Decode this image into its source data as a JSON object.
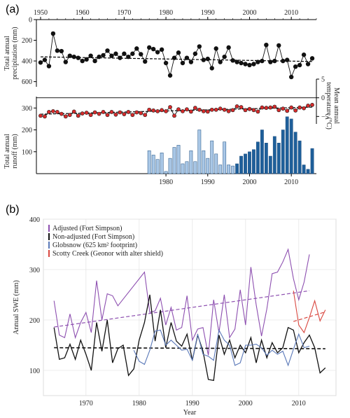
{
  "panel_a_label": "(a)",
  "panel_b_label": "(b)",
  "chart_data": [
    {
      "id": "a-precip",
      "type": "line",
      "ylabel_lines": [
        "Total annual",
        "precipitation (mm)"
      ],
      "x_ticks": [
        "1950",
        "1960",
        "1970",
        "1980",
        "1990",
        "2000",
        "2010"
      ],
      "y_ticks": [
        "0",
        "200",
        "400",
        "600"
      ],
      "xlim": [
        1949,
        2016
      ],
      "ylim": [
        0,
        650
      ],
      "inverted": true,
      "years": [
        1950,
        1951,
        1952,
        1953,
        1954,
        1955,
        1956,
        1957,
        1958,
        1959,
        1960,
        1961,
        1962,
        1963,
        1964,
        1965,
        1966,
        1967,
        1968,
        1969,
        1970,
        1971,
        1972,
        1973,
        1974,
        1975,
        1976,
        1977,
        1978,
        1979,
        1980,
        1981,
        1982,
        1983,
        1984,
        1985,
        1986,
        1987,
        1988,
        1989,
        1990,
        1991,
        1992,
        1993,
        1994,
        1995,
        1996,
        1997,
        1998,
        1999,
        2000,
        2001,
        2002,
        2003,
        2004,
        2005,
        2006,
        2007,
        2008,
        2009,
        2010,
        2011,
        2012,
        2013,
        2014,
        2015
      ],
      "values": [
        415,
        390,
        450,
        135,
        300,
        305,
        410,
        350,
        360,
        370,
        400,
        385,
        350,
        400,
        360,
        345,
        300,
        350,
        330,
        370,
        330,
        360,
        330,
        280,
        335,
        405,
        270,
        285,
        315,
        290,
        420,
        540,
        370,
        320,
        420,
        370,
        410,
        330,
        260,
        390,
        380,
        470,
        280,
        410,
        360,
        270,
        395,
        410,
        420,
        430,
        440,
        430,
        410,
        400,
        245,
        410,
        400,
        250,
        400,
        390,
        555,
        455,
        440,
        340,
        430,
        375
      ],
      "trend": [
        360,
        405
      ]
    },
    {
      "id": "a-temp",
      "type": "line",
      "ylabel_lines": [
        "Mean annual",
        "temperature (°C)"
      ],
      "y_ticks": [
        "5",
        "0",
        "-5"
      ],
      "ylim": [
        -7,
        5
      ],
      "years": [
        1950,
        1951,
        1952,
        1953,
        1954,
        1955,
        1956,
        1957,
        1958,
        1959,
        1960,
        1961,
        1962,
        1963,
        1964,
        1965,
        1966,
        1967,
        1968,
        1969,
        1970,
        1971,
        1972,
        1973,
        1974,
        1975,
        1976,
        1977,
        1978,
        1979,
        1980,
        1981,
        1982,
        1983,
        1984,
        1985,
        1986,
        1987,
        1988,
        1989,
        1990,
        1991,
        1992,
        1993,
        1994,
        1995,
        1996,
        1997,
        1998,
        1999,
        2000,
        2001,
        2002,
        2003,
        2004,
        2005,
        2006,
        2007,
        2008,
        2009,
        2010,
        2011,
        2012,
        2013,
        2014,
        2015
      ],
      "values": [
        -4.8,
        -5.0,
        -3.8,
        -3.6,
        -3.8,
        -4.3,
        -5.0,
        -4.6,
        -3.7,
        -4.8,
        -4.2,
        -4.0,
        -4.6,
        -3.9,
        -4.3,
        -3.8,
        -4.6,
        -3.8,
        -4.5,
        -3.9,
        -4.4,
        -3.8,
        -4.6,
        -3.9,
        -4.1,
        -4.6,
        -3.2,
        -3.4,
        -3.6,
        -3.3,
        -3.6,
        -2.5,
        -4.8,
        -3.1,
        -3.6,
        -3.1,
        -3.7,
        -2.7,
        -3.2,
        -3.6,
        -3.7,
        -3.2,
        -3.2,
        -2.9,
        -3.2,
        -3.6,
        -3.3,
        -2.3,
        -2.5,
        -3.3,
        -3.0,
        -3.3,
        -3.7,
        -2.6,
        -2.7,
        -2.6,
        -2.4,
        -3.3,
        -2.9,
        -3.5,
        -2.6,
        -3.4,
        -2.6,
        -2.8,
        -2.1,
        -1.9
      ],
      "trend": [
        -4.4,
        -2.5
      ]
    },
    {
      "id": "a-runoff",
      "type": "bar",
      "ylabel_lines": [
        "Total annual",
        "runoff (mm)"
      ],
      "y_ticks": [
        "300",
        "200",
        "100"
      ],
      "x_ticks": [
        "1980",
        "1990",
        "2000",
        "2010"
      ],
      "ylim": [
        0,
        320
      ],
      "years": [
        1976,
        1977,
        1978,
        1979,
        1980,
        1981,
        1982,
        1983,
        1984,
        1985,
        1986,
        1987,
        1988,
        1989,
        1990,
        1991,
        1992,
        1993,
        1994,
        1995,
        1996,
        1997,
        1998,
        1999,
        2000,
        2001,
        2002,
        2003,
        2004,
        2005,
        2006,
        2007,
        2008,
        2009,
        2010,
        2011,
        2012,
        2013,
        2014,
        2015
      ],
      "values": [
        105,
        85,
        65,
        95,
        10,
        70,
        120,
        130,
        45,
        55,
        105,
        55,
        200,
        105,
        70,
        150,
        90,
        40,
        145,
        40,
        35,
        45,
        80,
        90,
        100,
        110,
        145,
        200,
        140,
        80,
        170,
        140,
        200,
        260,
        250,
        190,
        150,
        40,
        20,
        115
      ],
      "light_color": "#a9c7e6",
      "dark_color": "#1e5f9a",
      "dark_from_year": 1997
    },
    {
      "id": "b-swe",
      "type": "line",
      "ylabel": "Annual SWE (mm)",
      "xlabel": "Year",
      "x_ticks": [
        "1970",
        "1980",
        "1990",
        "2000",
        "2010"
      ],
      "y_ticks": [
        "100",
        "200",
        "300",
        "400"
      ],
      "xlim": [
        1962,
        2017
      ],
      "ylim": [
        50,
        400
      ],
      "series": [
        {
          "name": "Adjusted (Fort Simpson)",
          "color": "#8d4fb0",
          "x": [
            1964,
            1965,
            1966,
            1967,
            1968,
            1969,
            1970,
            1971,
            1972,
            1973,
            1974,
            1975,
            1976,
            1981,
            1982,
            1983,
            1984,
            1985,
            1986,
            1987,
            1988,
            1989,
            1990,
            1991,
            1992,
            1993,
            1994,
            1995,
            1996,
            1997,
            1998,
            1999,
            2000,
            2001,
            2002,
            2003,
            2004,
            2005,
            2006,
            2007,
            2008,
            2009,
            2010,
            2011,
            2012
          ],
          "y": [
            238,
            170,
            165,
            212,
            165,
            195,
            215,
            175,
            278,
            200,
            252,
            248,
            228,
            295,
            215,
            218,
            243,
            190,
            225,
            180,
            185,
            248,
            160,
            182,
            185,
            130,
            240,
            175,
            250,
            165,
            182,
            260,
            190,
            305,
            230,
            168,
            222,
            292,
            295,
            315,
            340,
            282,
            240,
            275,
            330
          ],
          "trend": [
            [
              1964,
              186
            ],
            [
              2012,
              258
            ]
          ]
        },
        {
          "name": "Non-adjusted  (Fort Simpson)",
          "color": "#111111",
          "x": [
            1964,
            1965,
            1966,
            1967,
            1968,
            1969,
            1970,
            1971,
            1972,
            1973,
            1974,
            1975,
            1976,
            1977,
            1978,
            1979,
            1980,
            1981,
            1982,
            1983,
            1984,
            1985,
            1986,
            1987,
            1988,
            1989,
            1990,
            1991,
            1992,
            1993,
            1994,
            1995,
            1996,
            1997,
            1998,
            1999,
            2000,
            2001,
            2002,
            2003,
            2004,
            2005,
            2006,
            2007,
            2008,
            2009,
            2010,
            2011,
            2012,
            2013,
            2014,
            2015
          ],
          "y": [
            185,
            122,
            125,
            152,
            122,
            160,
            132,
            100,
            195,
            138,
            200,
            115,
            143,
            150,
            90,
            103,
            160,
            195,
            250,
            158,
            220,
            145,
            195,
            158,
            148,
            172,
            120,
            170,
            138,
            82,
            80,
            170,
            132,
            160,
            125,
            150,
            135,
            165,
            115,
            160,
            125,
            155,
            135,
            145,
            185,
            180,
            135,
            155,
            170,
            145,
            95,
            105
          ],
          "trend": [
            [
              1964,
              145
            ],
            [
              2015,
              143
            ]
          ]
        },
        {
          "name": "Globsnow (625 km² footprint)",
          "color": "#5a78b8",
          "x": [
            1979,
            1980,
            1981,
            1982,
            1983,
            1984,
            1985,
            1986,
            1987,
            1988,
            1989,
            1990,
            1991,
            1992,
            1993,
            1994,
            1995,
            1996,
            1997,
            1998,
            1999,
            2000,
            2001,
            2002,
            2003,
            2004,
            2005,
            2006,
            2007,
            2008,
            2009,
            2010,
            2011,
            2012
          ],
          "y": [
            140,
            118,
            112,
            140,
            178,
            180,
            150,
            160,
            150,
            140,
            142,
            120,
            172,
            132,
            128,
            120,
            180,
            160,
            150,
            110,
            115,
            150,
            150,
            152,
            145,
            130,
            140,
            132,
            138,
            110,
            142,
            172,
            145,
            148
          ],
          "trend": []
        },
        {
          "name": "Scotty Creek (Geonor with alter shield)",
          "color": "#d9473f",
          "x": [
            2009,
            2010,
            2011,
            2012,
            2013,
            2014,
            2015
          ],
          "y": [
            258,
            190,
            175,
            205,
            238,
            198,
            220
          ],
          "trend": [
            [
              2009,
              197
            ],
            [
              2015,
              216
            ]
          ]
        }
      ]
    }
  ]
}
